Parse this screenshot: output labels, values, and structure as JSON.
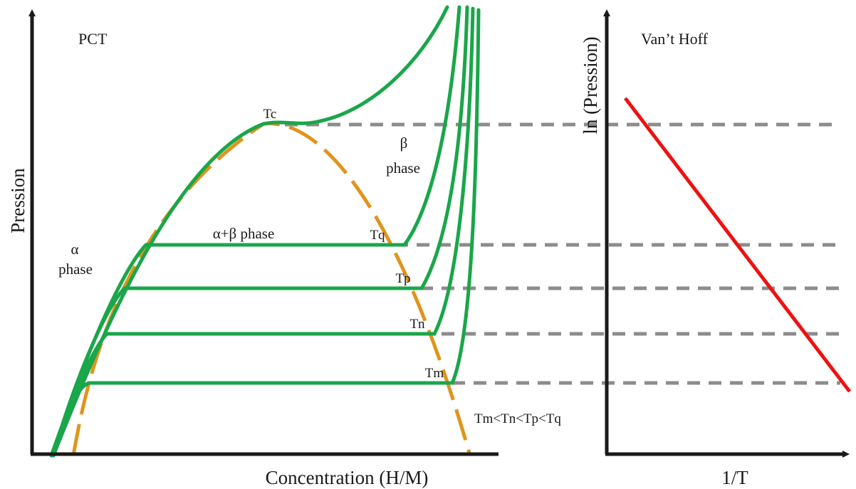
{
  "pct_panel": {
    "title": "PCT",
    "y_axis_label": "Pression",
    "x_axis_label": "Concentration (H/M)",
    "alpha_phase": [
      "α",
      "phase"
    ],
    "beta_phase": [
      "β",
      "phase"
    ],
    "two_phase": "α+β phase",
    "critical_temperature": "Tc",
    "isotherms": [
      "Tq",
      "Tp",
      "Tn",
      "Tm"
    ],
    "temperature_order": "Tm<Tn<Tp<Tq"
  },
  "vant_hoff_panel": {
    "title": "Van’t Hoff",
    "y_axis_label": "ln (Pression)",
    "x_axis_label": "1/T"
  },
  "colors": {
    "isotherm": "#1aa64a",
    "dome": "#e0941c",
    "vant_hoff_line": "#ee1111",
    "guide": "#8c8c8c",
    "axis": "#1a1a1a"
  }
}
